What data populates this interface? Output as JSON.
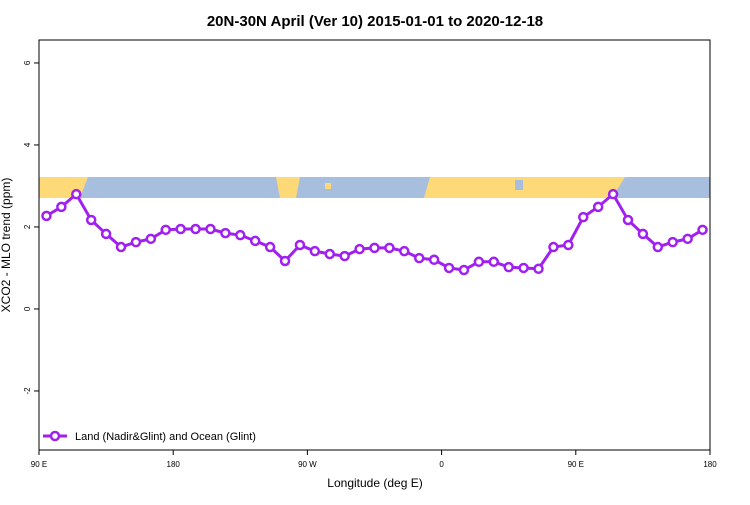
{
  "chart_data": {
    "type": "line",
    "title": "20N-30N April (Ver 10)   2015-01-01 to 2020-12-18",
    "x_label": "Longitude (deg E)",
    "y_label": "XCO2 - MLO trend (ppm)",
    "x": [
      95,
      105,
      115,
      125,
      135,
      145,
      155,
      165,
      175,
      185,
      195,
      205,
      215,
      225,
      235,
      245,
      255,
      265,
      275,
      285,
      295,
      305,
      315,
      325,
      335,
      345,
      355,
      365,
      375,
      385,
      395,
      405,
      415,
      425,
      435,
      445,
      455,
      465,
      475,
      485,
      495,
      505,
      515,
      525,
      535
    ],
    "series": [
      {
        "name": "Land (Nadir&Glint) and Ocean (Glint)",
        "color": "#a020f0",
        "values": [
          2.27,
          2.49,
          2.8,
          2.17,
          1.83,
          1.51,
          1.63,
          1.71,
          1.93,
          1.95,
          1.95,
          1.95,
          1.85,
          1.8,
          1.66,
          1.51,
          1.17,
          1.56,
          1.41,
          1.34,
          1.29,
          1.46,
          1.49,
          1.49,
          1.41,
          1.24,
          1.2,
          1.0,
          0.95,
          1.15,
          1.15,
          1.02,
          1.0,
          0.98,
          1.51,
          1.56,
          2.24,
          2.49,
          2.8,
          2.17,
          1.83,
          1.51,
          1.63,
          1.71,
          1.93
        ]
      }
    ],
    "xlim": [
      90,
      540
    ],
    "xticks": [
      {
        "value": 90,
        "label": "90 E"
      },
      180,
      {
        "value": 270,
        "label": "90 W"
      },
      {
        "value": 360,
        "label": "0"
      },
      {
        "value": 450,
        "label": "90 E"
      },
      {
        "value": 540,
        "label": "180"
      }
    ],
    "ylim": [
      -3.44,
      6.56
    ],
    "yticks": [
      -2,
      0,
      2,
      4,
      6
    ],
    "legend": "bottom-left"
  }
}
